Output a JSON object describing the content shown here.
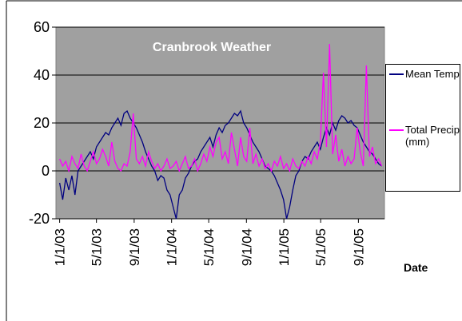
{
  "chart_data": {
    "type": "line",
    "title": "Cranbrook Weather",
    "xlabel": "Date",
    "x": [
      "2003-01-01",
      "2003-01-11",
      "2003-01-21",
      "2003-01-31",
      "2003-02-10",
      "2003-02-20",
      "2003-03-02",
      "2003-03-12",
      "2003-03-22",
      "2003-04-01",
      "2003-04-11",
      "2003-04-21",
      "2003-05-01",
      "2003-05-11",
      "2003-05-21",
      "2003-05-31",
      "2003-06-10",
      "2003-06-20",
      "2003-06-30",
      "2003-07-10",
      "2003-07-20",
      "2003-07-30",
      "2003-08-09",
      "2003-08-19",
      "2003-08-29",
      "2003-09-08",
      "2003-09-18",
      "2003-09-28",
      "2003-10-08",
      "2003-10-18",
      "2003-10-28",
      "2003-11-07",
      "2003-11-17",
      "2003-11-27",
      "2003-12-07",
      "2003-12-17",
      "2003-12-27",
      "2004-01-06",
      "2004-01-16",
      "2004-01-26",
      "2004-02-05",
      "2004-02-15",
      "2004-02-25",
      "2004-03-06",
      "2004-03-16",
      "2004-03-26",
      "2004-04-05",
      "2004-04-15",
      "2004-04-25",
      "2004-05-05",
      "2004-05-15",
      "2004-05-25",
      "2004-06-04",
      "2004-06-14",
      "2004-06-24",
      "2004-07-04",
      "2004-07-14",
      "2004-07-24",
      "2004-08-03",
      "2004-08-13",
      "2004-08-23",
      "2004-09-02",
      "2004-09-12",
      "2004-09-22",
      "2004-10-02",
      "2004-10-12",
      "2004-10-22",
      "2004-11-01",
      "2004-11-11",
      "2004-11-21",
      "2004-12-01",
      "2004-12-11",
      "2004-12-21",
      "2004-12-31",
      "2005-01-10",
      "2005-01-20",
      "2005-01-30",
      "2005-02-09",
      "2005-02-19",
      "2005-03-01",
      "2005-03-11",
      "2005-03-21",
      "2005-03-31",
      "2005-04-10",
      "2005-04-20",
      "2005-04-30",
      "2005-05-10",
      "2005-05-20",
      "2005-05-30",
      "2005-06-09",
      "2005-06-19",
      "2005-06-29",
      "2005-07-09",
      "2005-07-19",
      "2005-07-29",
      "2005-08-08",
      "2005-08-18",
      "2005-08-28",
      "2005-09-07",
      "2005-09-17",
      "2005-09-27",
      "2005-10-07",
      "2005-10-17",
      "2005-10-27",
      "2005-11-06",
      "2005-11-16"
    ],
    "series": [
      {
        "name": "Mean Temp",
        "color": "#000080",
        "values": [
          -5,
          -12,
          -3,
          -8,
          -2,
          -10,
          0,
          2,
          4,
          6,
          8,
          5,
          10,
          12,
          14,
          16,
          15,
          18,
          20,
          22,
          19,
          24,
          25,
          22,
          20,
          18,
          15,
          12,
          8,
          5,
          2,
          0,
          -4,
          -2,
          -3,
          -8,
          -10,
          -15,
          -20,
          -10,
          -8,
          -3,
          -1,
          2,
          4,
          5,
          8,
          10,
          12,
          14,
          10,
          15,
          18,
          16,
          19,
          20,
          22,
          24,
          23,
          25,
          20,
          18,
          15,
          12,
          10,
          8,
          5,
          2,
          1,
          0,
          -2,
          -5,
          -8,
          -12,
          -20,
          -15,
          -8,
          -2,
          0,
          4,
          6,
          5,
          8,
          10,
          12,
          9,
          14,
          18,
          15,
          20,
          17,
          21,
          23,
          22,
          20,
          21,
          19,
          18,
          15,
          12,
          10,
          8,
          7,
          5,
          3,
          2
        ]
      },
      {
        "name": "Total Precip (mm)",
        "color": "#ff00ff",
        "values": [
          5,
          2,
          4,
          0,
          6,
          3,
          1,
          7,
          2,
          0,
          4,
          8,
          3,
          5,
          9,
          6,
          2,
          12,
          4,
          1,
          0,
          3,
          2,
          8,
          24,
          5,
          3,
          6,
          2,
          8,
          4,
          1,
          3,
          0,
          2,
          5,
          1,
          2,
          4,
          0,
          3,
          6,
          1,
          2,
          5,
          0,
          3,
          7,
          4,
          10,
          6,
          12,
          14,
          5,
          8,
          3,
          16,
          9,
          2,
          14,
          6,
          4,
          18,
          3,
          7,
          2,
          5,
          1,
          3,
          0,
          4,
          2,
          6,
          1,
          3,
          0,
          5,
          2,
          1,
          4,
          2,
          6,
          3,
          8,
          5,
          12,
          41,
          10,
          53,
          7,
          15,
          4,
          9,
          2,
          6,
          3,
          5,
          18,
          8,
          2,
          44,
          6,
          10,
          3,
          5,
          2
        ]
      }
    ],
    "xlim": [
      "2002-12-20",
      "2005-11-25"
    ],
    "xticks": [
      {
        "value": "2003-01-01",
        "label": "1/1/03"
      },
      {
        "value": "2003-05-01",
        "label": "5/1/03"
      },
      {
        "value": "2003-09-01",
        "label": "9/1/03"
      },
      {
        "value": "2004-01-01",
        "label": "1/1/04"
      },
      {
        "value": "2004-05-01",
        "label": "5/1/04"
      },
      {
        "value": "2004-09-01",
        "label": "9/1/04"
      },
      {
        "value": "2005-01-01",
        "label": "1/1/05"
      },
      {
        "value": "2005-05-01",
        "label": "5/1/05"
      },
      {
        "value": "2005-09-01",
        "label": "9/1/05"
      }
    ],
    "ylim": [
      -20,
      60
    ],
    "yticks": [
      -20,
      0,
      20,
      40,
      60
    ],
    "grid": true,
    "plot_background": "#a0a0a0",
    "legend": "right"
  }
}
